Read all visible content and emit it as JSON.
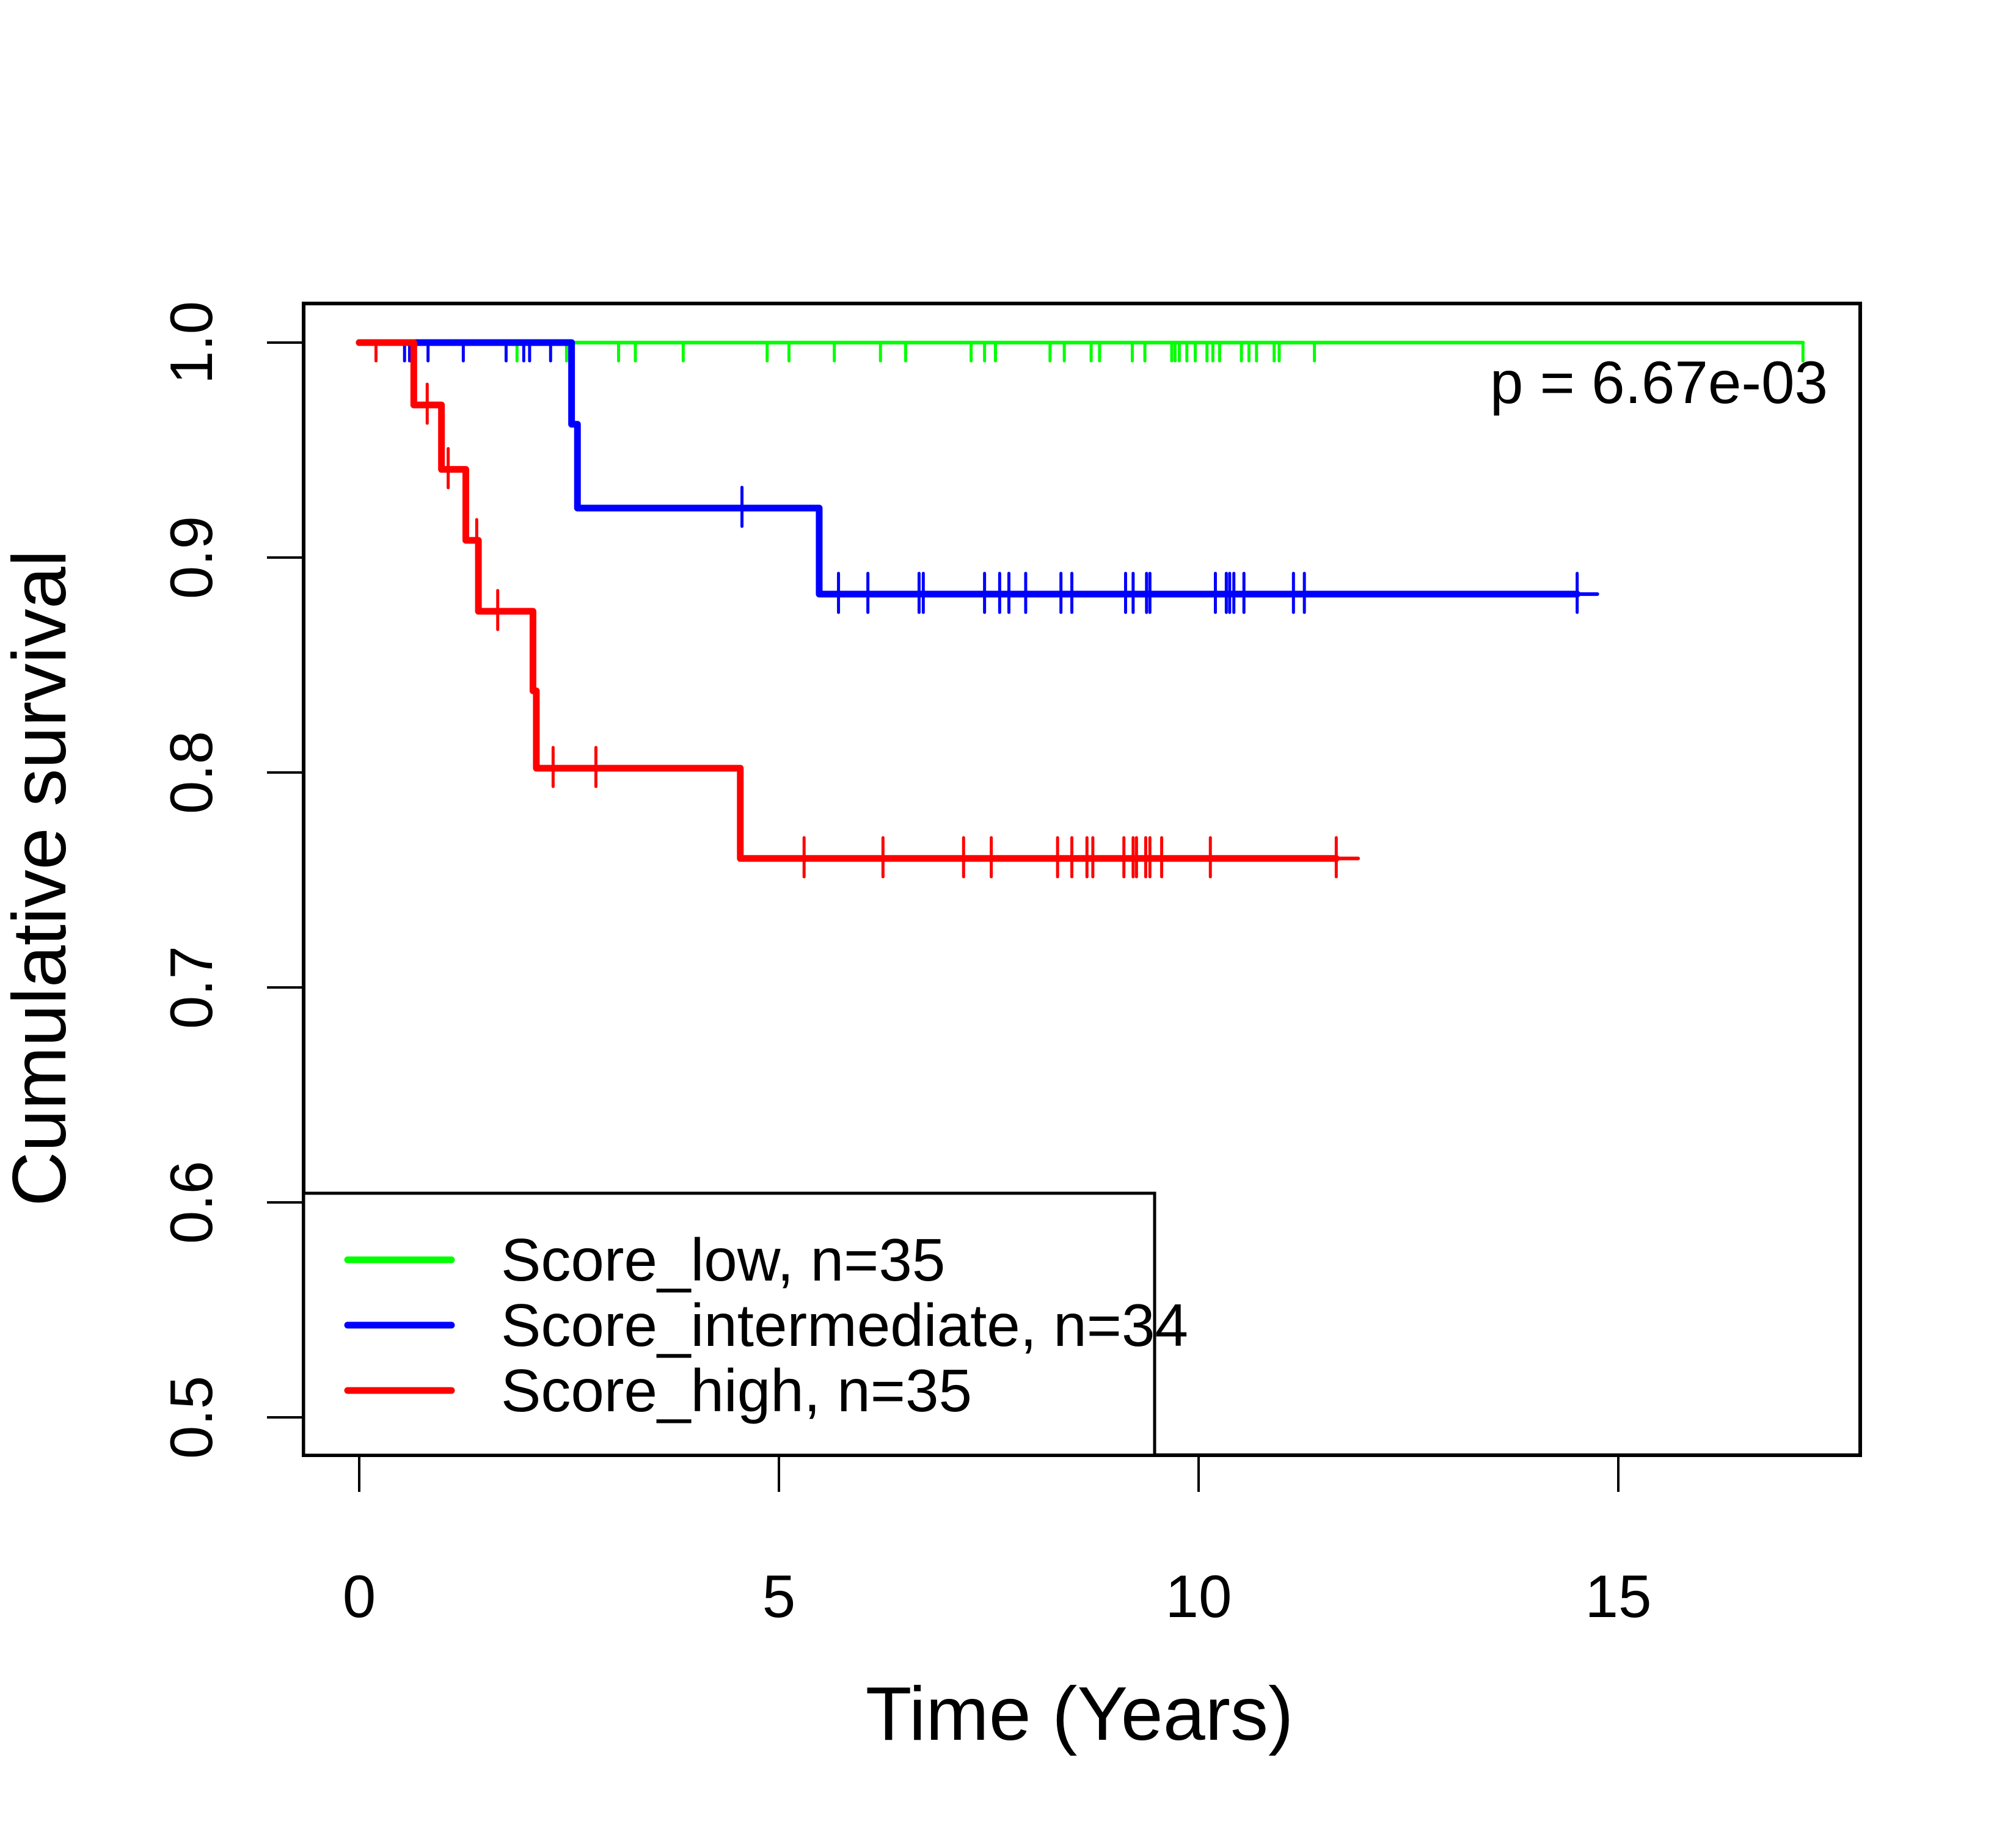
{
  "chart_data": {
    "type": "line",
    "subtype": "kaplan-meier",
    "title": "",
    "xlabel": "Time (Years)",
    "ylabel": "Cumulative survival",
    "xlim": [
      -0.3,
      17.6
    ],
    "ylim": [
      0.5,
      1.0
    ],
    "xticks": [
      0,
      5,
      10,
      15
    ],
    "xtick_labels": [
      "0",
      "5",
      "10",
      "15"
    ],
    "yticks": [
      0.5,
      0.6,
      0.7,
      0.8,
      0.9,
      1.0
    ],
    "ytick_labels": [
      "0.5",
      "0.6",
      "0.7",
      "0.8",
      "0.9",
      "1.0"
    ],
    "grid": false,
    "annotation": "p = 6.67e-03",
    "legend": {
      "placement": "bottom-left",
      "entries": [
        "Score_low, n=35",
        "Score_intermediate, n=34",
        "Score_high, n=35"
      ]
    },
    "series": [
      {
        "name": "Score_low, n=35",
        "color": "#00ff00",
        "steps": [
          [
            0,
            1.0
          ]
        ],
        "end_time": 17.2,
        "censor_times": [
          1.88,
          2.47,
          3.09,
          3.29,
          3.86,
          4.86,
          5.12,
          5.66,
          6.21,
          6.51,
          7.29,
          7.45,
          7.58,
          8.23,
          8.4,
          8.72,
          8.82,
          9.21,
          9.36,
          9.68,
          9.72,
          9.77,
          9.86,
          9.96,
          10.1,
          10.17,
          10.25,
          10.51,
          10.6,
          10.69,
          10.9,
          10.96,
          11.38,
          17.2
        ]
      },
      {
        "name": "Score_intermediate, n=34",
        "color": "#0000ff",
        "steps": [
          [
            0,
            1.0
          ],
          [
            2.53,
            0.962
          ],
          [
            2.6,
            0.923
          ],
          [
            5.48,
            0.883
          ]
        ],
        "end_time": 14.75,
        "censor_times": [
          0.54,
          0.6,
          0.82,
          1.24,
          1.75,
          1.96,
          2.03,
          2.28,
          4.56,
          5.71,
          6.06,
          6.67,
          6.72,
          7.45,
          7.63,
          7.74,
          7.94,
          8.36,
          8.49,
          9.13,
          9.22,
          9.38,
          9.42,
          10.2,
          10.33,
          10.37,
          10.42,
          10.54,
          11.13,
          11.26,
          14.51
        ]
      },
      {
        "name": "Score_high, n=35",
        "color": "#ff0000",
        "steps": [
          [
            0,
            1.0
          ],
          [
            0.65,
            0.971
          ],
          [
            0.98,
            0.941
          ],
          [
            1.27,
            0.908
          ],
          [
            1.42,
            0.875
          ],
          [
            2.07,
            0.838
          ],
          [
            2.11,
            0.802
          ],
          [
            4.54,
            0.76
          ]
        ],
        "end_time": 11.9,
        "censor_times": [
          0.2,
          0.81,
          1.06,
          1.4,
          1.65,
          2.31,
          2.82,
          5.3,
          6.24,
          7.2,
          7.53,
          8.32,
          8.49,
          8.67,
          8.74,
          9.11,
          9.22,
          9.26,
          9.37,
          9.42,
          9.56,
          10.14,
          11.64
        ]
      }
    ]
  }
}
